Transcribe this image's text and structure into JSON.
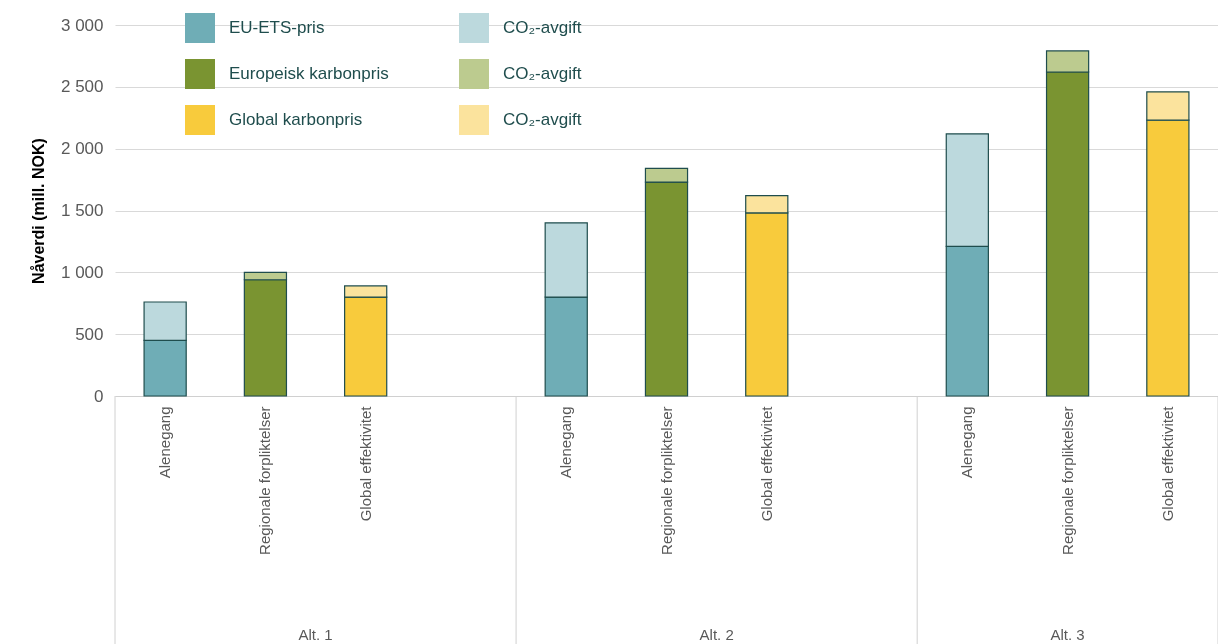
{
  "chart_data": {
    "type": "bar",
    "stacked": true,
    "ylabel": "Nåverdi  (mill. NOK)",
    "categories": [
      "Alenegang",
      "Regionale forpliktelser",
      "Global effektivitet",
      null,
      "Alenegang",
      "Regionale forpliktelser",
      "Global effektivitet",
      null,
      "Alenegang",
      "Regionale forpliktelser",
      "Global effektivitet"
    ],
    "series": [
      {
        "name": "EU-ETS-pris",
        "color": "#6fadb6",
        "values": [
          450,
          null,
          null,
          null,
          800,
          null,
          null,
          null,
          1210,
          null,
          null
        ]
      },
      {
        "name": "CO₂-avgift",
        "color": "#bcd9dd",
        "values": [
          310,
          null,
          null,
          null,
          600,
          null,
          null,
          null,
          910,
          null,
          null
        ]
      },
      {
        "name": "Europeisk karbonpris",
        "color": "#7a9431",
        "values": [
          null,
          940,
          null,
          null,
          null,
          1730,
          null,
          null,
          null,
          2620,
          null
        ]
      },
      {
        "name": "CO₂-avgift",
        "color": "#bccb8f",
        "values": [
          null,
          60,
          null,
          null,
          null,
          110,
          null,
          null,
          null,
          170,
          null
        ]
      },
      {
        "name": "Global karbonpris",
        "color": "#f8cb3c",
        "values": [
          null,
          null,
          800,
          null,
          null,
          null,
          1480,
          null,
          null,
          null,
          2230
        ]
      },
      {
        "name": "CO₂-avgift",
        "color": "#fbe39d",
        "values": [
          null,
          null,
          90,
          null,
          null,
          null,
          140,
          null,
          null,
          null,
          230
        ]
      }
    ],
    "ylim": [
      0,
      3000
    ],
    "yticks": [
      0,
      500,
      {
        "value": 1000,
        "label": "1 000"
      },
      {
        "value": 1500,
        "label": "1 500"
      },
      {
        "value": 2000,
        "label": "2 000"
      },
      {
        "value": 2500,
        "label": "2 500"
      },
      {
        "value": 3000,
        "label": "3 000"
      }
    ],
    "grid": "y",
    "legend": "top left",
    "annotations": [
      "Alt. 1",
      "Alt. 2",
      "Alt. 3"
    ]
  }
}
